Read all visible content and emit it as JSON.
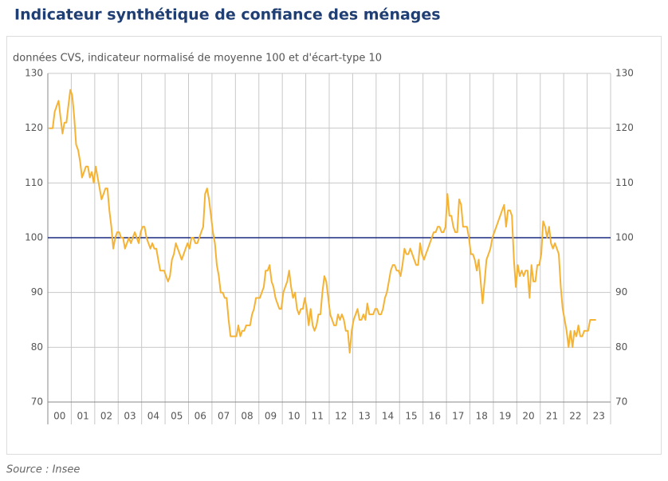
{
  "chart_data": {
    "type": "line",
    "title": "Indicateur synthétique de confiance des ménages",
    "subtitle": "données CVS, indicateur normalisé de moyenne 100 et d'écart-type 10",
    "source": "Source : Insee",
    "ylim": [
      70,
      130
    ],
    "yticks": [
      70,
      80,
      90,
      100,
      110,
      120,
      130
    ],
    "y2lim": [
      70,
      130
    ],
    "y2ticks": [
      70,
      80,
      90,
      100,
      110,
      120,
      130
    ],
    "xlim": [
      0,
      24
    ],
    "xticks": [
      {
        "value": 0,
        "label": "00"
      },
      {
        "value": 1,
        "label": "01"
      },
      {
        "value": 2,
        "label": "02"
      },
      {
        "value": 3,
        "label": "03"
      },
      {
        "value": 4,
        "label": "04"
      },
      {
        "value": 5,
        "label": "05"
      },
      {
        "value": 6,
        "label": "06"
      },
      {
        "value": 7,
        "label": "07"
      },
      {
        "value": 8,
        "label": "08"
      },
      {
        "value": 9,
        "label": "09"
      },
      {
        "value": 10,
        "label": "10"
      },
      {
        "value": 11,
        "label": "11"
      },
      {
        "value": 12,
        "label": "12"
      },
      {
        "value": 13,
        "label": "13"
      },
      {
        "value": 14,
        "label": "14"
      },
      {
        "value": 15,
        "label": "15"
      },
      {
        "value": 16,
        "label": "16"
      },
      {
        "value": 17,
        "label": "17"
      },
      {
        "value": 18,
        "label": "18"
      },
      {
        "value": 19,
        "label": "19"
      },
      {
        "value": 20,
        "label": "20"
      },
      {
        "value": 21,
        "label": "21"
      },
      {
        "value": 22,
        "label": "22"
      },
      {
        "value": 23,
        "label": "23"
      }
    ],
    "grid": true,
    "reference_line": {
      "value": 100,
      "color": "#1c2a80"
    },
    "series": [
      {
        "color": "#f5b335",
        "values": [
          120,
          120,
          120,
          123,
          124,
          125,
          122,
          119,
          121,
          121,
          124,
          127,
          126,
          122,
          117,
          116,
          114,
          111,
          112,
          113,
          113,
          111,
          112,
          110,
          113,
          111,
          109,
          107,
          108,
          109,
          109,
          105,
          102,
          98,
          100,
          101,
          101,
          100,
          100,
          98,
          99,
          100,
          99,
          100,
          101,
          100,
          99,
          101,
          102,
          102,
          100,
          99,
          98,
          99,
          98,
          98,
          96,
          94,
          94,
          94,
          93,
          92,
          93,
          96,
          97,
          99,
          98,
          97,
          96,
          97,
          98,
          99,
          98,
          100,
          100,
          99,
          99,
          100,
          101,
          102,
          108,
          109,
          107,
          104,
          101,
          99,
          95,
          93,
          90,
          90,
          89,
          89,
          85,
          82,
          82,
          82,
          82,
          84,
          82,
          83,
          83,
          84,
          84,
          84,
          86,
          87,
          89,
          89,
          89,
          90,
          91,
          94,
          94,
          95,
          92,
          91,
          89,
          88,
          87,
          87,
          90,
          91,
          92,
          94,
          91,
          89,
          90,
          87,
          86,
          87,
          87,
          89,
          87,
          84,
          87,
          84,
          83,
          84,
          86,
          86,
          90,
          93,
          92,
          89,
          86,
          85,
          84,
          84,
          86,
          85,
          86,
          85,
          83,
          83,
          79,
          83,
          85,
          86,
          87,
          85,
          85,
          86,
          85,
          88,
          86,
          86,
          86,
          87,
          87,
          86,
          86,
          87,
          89,
          90,
          92,
          94,
          95,
          95,
          94,
          94,
          93,
          95,
          98,
          97,
          97,
          98,
          97,
          96,
          95,
          95,
          99,
          97,
          96,
          97,
          98,
          99,
          100,
          101,
          101,
          102,
          102,
          101,
          101,
          102,
          108,
          104,
          104,
          102,
          101,
          101,
          107,
          106,
          102,
          102,
          102,
          100,
          97,
          97,
          96,
          94,
          96,
          92,
          88,
          92,
          96,
          97,
          98,
          100,
          101,
          102,
          103,
          104,
          105,
          106,
          102,
          105,
          105,
          104,
          96,
          91,
          95,
          93,
          94,
          93,
          94,
          94,
          89,
          95,
          92,
          92,
          95,
          95,
          97,
          103,
          102,
          100,
          102,
          99,
          98,
          99,
          98,
          97,
          91,
          87,
          85,
          83,
          80,
          83,
          80,
          83,
          82,
          84,
          82,
          82,
          83,
          83,
          83,
          85,
          85,
          85,
          85
        ]
      }
    ]
  }
}
